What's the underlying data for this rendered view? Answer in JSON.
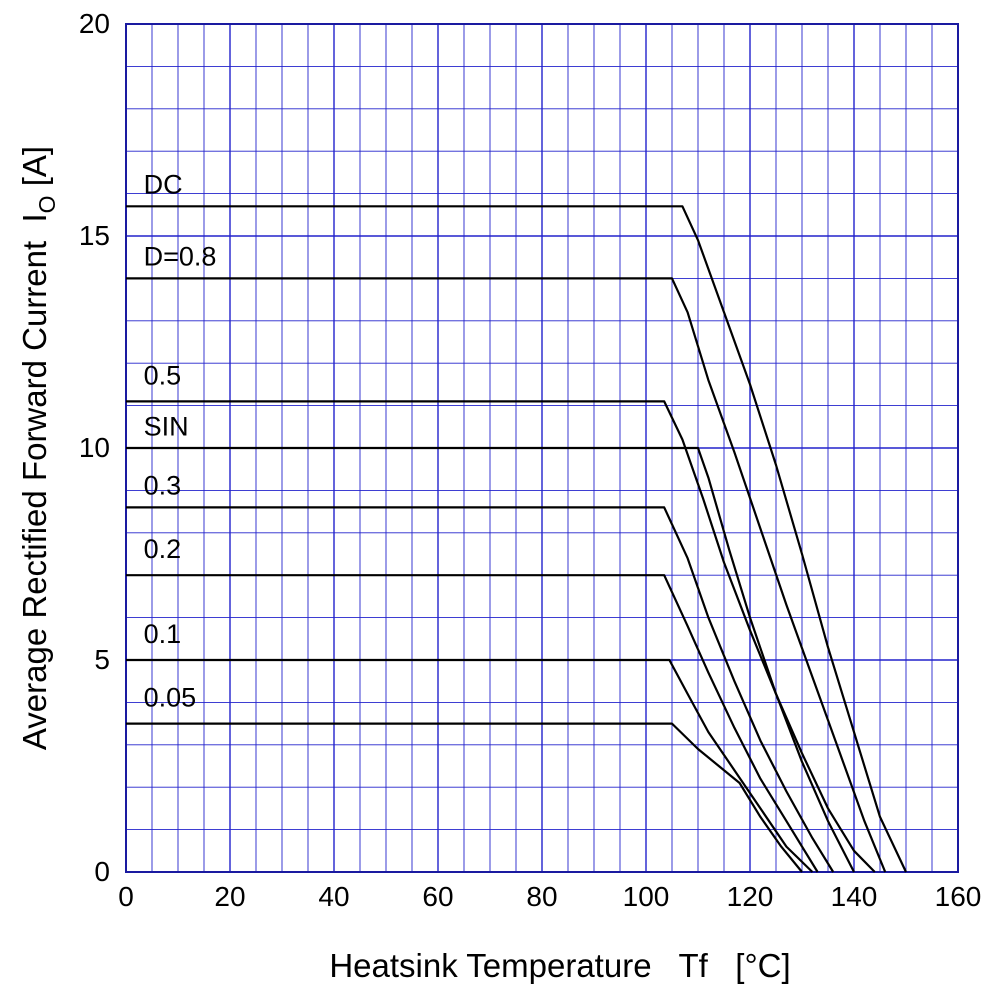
{
  "chart_data": {
    "type": "line",
    "title": "",
    "xlabel": "Heatsink Temperature   Tf   [°C]",
    "ylabel_main": "Average Rectified Forward Current  I",
    "ylabel_sub": "O",
    "ylabel_unit": " [A]",
    "xlim": [
      0,
      160
    ],
    "ylim": [
      0,
      20
    ],
    "x_ticks": [
      "0",
      "20",
      "40",
      "60",
      "80",
      "100",
      "120",
      "140",
      "160"
    ],
    "y_ticks": [
      "0",
      "5",
      "10",
      "15",
      "20"
    ],
    "x_minor_step": 5,
    "y_minor_step": 1,
    "grid": true,
    "colors": {
      "grid": "#2222cc",
      "axis": "#1a1aa0",
      "line": "#000000"
    },
    "series": [
      {
        "name": "DC",
        "x": [
          0,
          107,
          110,
          115,
          120,
          125,
          130,
          135,
          140,
          145,
          150
        ],
        "y": [
          15.7,
          15.7,
          14.9,
          13.2,
          11.5,
          9.6,
          7.5,
          5.3,
          3.3,
          1.3,
          0
        ]
      },
      {
        "name": "D=0.8",
        "x": [
          0,
          105,
          108,
          112,
          117,
          122,
          127,
          132,
          137,
          142,
          146
        ],
        "y": [
          14.0,
          14.0,
          13.2,
          11.6,
          9.9,
          8.1,
          6.3,
          4.6,
          2.9,
          1.2,
          0
        ]
      },
      {
        "name": "0.5",
        "x": [
          0,
          103.5,
          107,
          111,
          115,
          120,
          125,
          130,
          135,
          140,
          144
        ],
        "y": [
          11.1,
          11.1,
          10.2,
          8.8,
          7.3,
          5.7,
          4.2,
          2.8,
          1.5,
          0.5,
          0
        ]
      },
      {
        "name": "SIN",
        "x": [
          0,
          110,
          112,
          116,
          120,
          125,
          130,
          135,
          140
        ],
        "y": [
          10.0,
          10.0,
          9.3,
          7.6,
          6.0,
          4.2,
          2.6,
          1.2,
          0
        ]
      },
      {
        "name": "0.3",
        "x": [
          0,
          103.5,
          108,
          112,
          117,
          122,
          127,
          132,
          136
        ],
        "y": [
          8.6,
          8.6,
          7.4,
          6.0,
          4.5,
          3.1,
          1.9,
          0.8,
          0
        ]
      },
      {
        "name": "0.2",
        "x": [
          0,
          103.5,
          108,
          112,
          117,
          122,
          127,
          133
        ],
        "y": [
          7.0,
          7.0,
          5.8,
          4.7,
          3.4,
          2.2,
          1.2,
          0
        ]
      },
      {
        "name": "0.1",
        "x": [
          0,
          104.5,
          108,
          112,
          117,
          122,
          127,
          132
        ],
        "y": [
          5.0,
          5.0,
          4.2,
          3.3,
          2.4,
          1.5,
          0.6,
          0
        ]
      },
      {
        "name": "0.05",
        "x": [
          0,
          105,
          110,
          114,
          118,
          122,
          126,
          130
        ],
        "y": [
          3.5,
          3.5,
          2.9,
          2.5,
          2.1,
          1.3,
          0.6,
          0
        ]
      }
    ],
    "annotations": [
      {
        "text": "DC",
        "x": 3,
        "y": 16.0
      },
      {
        "text": "D=0.8",
        "x": 3,
        "y": 14.3
      },
      {
        "text": "0.5",
        "x": 3,
        "y": 11.5
      },
      {
        "text": "SIN",
        "x": 3,
        "y": 10.3
      },
      {
        "text": "0.3",
        "x": 3,
        "y": 8.9
      },
      {
        "text": "0.2",
        "x": 3,
        "y": 7.4
      },
      {
        "text": "0.1",
        "x": 3,
        "y": 5.4
      },
      {
        "text": "0.05",
        "x": 3,
        "y": 3.9
      }
    ]
  }
}
